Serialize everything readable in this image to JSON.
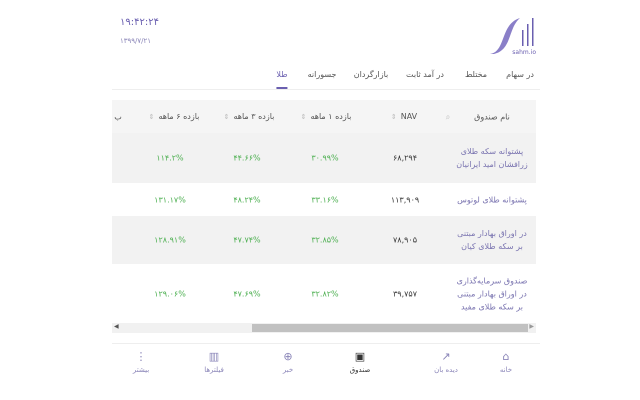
{
  "header": {
    "time": "۱۹:۴۲:۲۴",
    "date": "۱۳۹۹/۷/۲۱",
    "logo_text": "sahm.io"
  },
  "tabs": [
    {
      "label": "در سهام"
    },
    {
      "label": "مختلط"
    },
    {
      "label": "در آمد ثابت"
    },
    {
      "label": "بازارگردان"
    },
    {
      "label": "جسورانه"
    },
    {
      "label": "طلا",
      "active": true
    }
  ],
  "table": {
    "headers": {
      "name": "نام صندوق",
      "nav": "NAV",
      "m1": "بازده ۱ ماهه",
      "m3": "بازده ۳ ماهه",
      "m6": "بازده ۶ ماهه",
      "cut": "ب"
    },
    "rows": [
      {
        "name1": "پشتوانه سکه طلای",
        "name2": "زرافشان امید ایرانیان",
        "name3": "",
        "nav": "۶۸,۲۹۴",
        "m1": "۳۰.۹۹%",
        "m3": "۴۴.۶۶%",
        "m6": "۱۱۴.۲%"
      },
      {
        "name1": "پشتوانه طلای لوتوس",
        "name2": "",
        "name3": "",
        "nav": "۱۱۳,۹۰۹",
        "m1": "۳۳.۱۶%",
        "m3": "۴۸.۲۴%",
        "m6": "۱۳۱.۱۷%"
      },
      {
        "name1": "در اوراق بهادار مبتنی",
        "name2": "بر سکه طلای کیان",
        "name3": "",
        "nav": "۷۸,۹۰۵",
        "m1": "۳۲.۸۵%",
        "m3": "۴۷.۷۴%",
        "m6": "۱۲۸.۹۱%"
      },
      {
        "name1": "صندوق سرمایه‌گذاری",
        "name2": "در اوراق بهادار مبتنی",
        "name3": "بر سکه طلای مفید",
        "nav": "۳۹,۷۵۷",
        "m1": "۳۲.۸۲%",
        "m3": "۴۷.۶۹%",
        "m6": "۱۲۹.۰۶%"
      }
    ]
  },
  "bottom_nav": [
    {
      "label": "خانه",
      "icon": "home-icon"
    },
    {
      "label": "دیده بان",
      "icon": "trend-icon"
    },
    {
      "label": "صندوق",
      "icon": "wallet-icon",
      "active": true
    },
    {
      "label": "خبر",
      "icon": "globe-icon"
    },
    {
      "label": "فیلترها",
      "icon": "chart-icon"
    },
    {
      "label": "بیشتر",
      "icon": "more-icon"
    }
  ],
  "colors": {
    "accent": "#6a5fb0",
    "positive": "#4caf50"
  }
}
